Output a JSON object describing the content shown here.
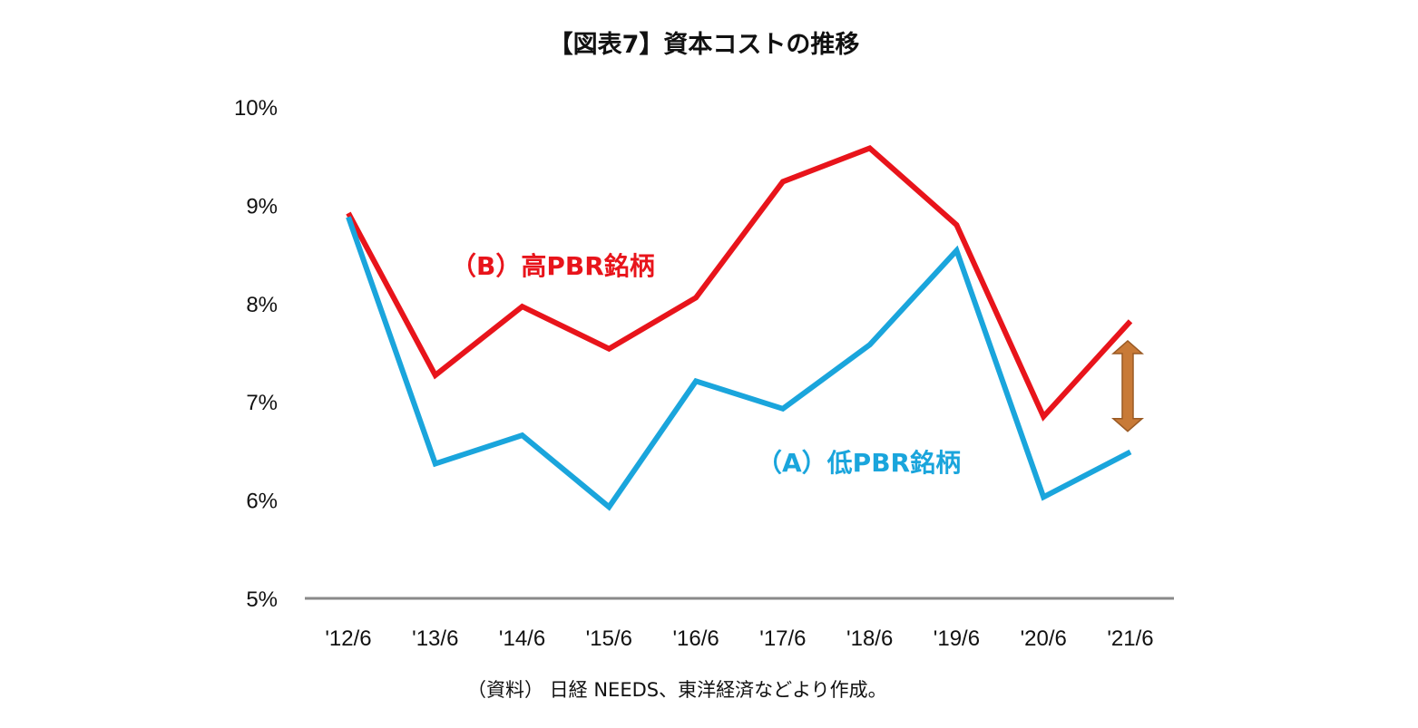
{
  "chart_data": {
    "type": "line",
    "title": "【図表7】資本コストの推移",
    "source": "（資料） 日経 NEEDS、東洋経済などより作成。",
    "categories": [
      "'12/6",
      "'13/6",
      "'14/6",
      "'15/6",
      "'16/6",
      "'17/6",
      "'18/6",
      "'19/6",
      "'20/6",
      "'21/6"
    ],
    "yaxis": {
      "min": 5,
      "max": 10,
      "ticks": [
        5,
        6,
        7,
        8,
        9,
        10
      ],
      "tick_labels": [
        "5%",
        "6%",
        "7%",
        "8%",
        "9%",
        "10%"
      ]
    },
    "grid": false,
    "series": [
      {
        "name": "（B）高PBR銘柄",
        "color": "#e8141b",
        "values": [
          8.92,
          7.27,
          7.97,
          7.54,
          8.06,
          9.24,
          9.58,
          8.8,
          6.85,
          7.82
        ]
      },
      {
        "name": "（A）低PBR銘柄",
        "color": "#1aa5dc",
        "values": [
          8.88,
          6.37,
          6.66,
          5.93,
          7.21,
          6.93,
          7.58,
          8.54,
          6.03,
          6.49
        ]
      }
    ],
    "annotations": [
      {
        "type": "double-arrow",
        "color": "#c87a37",
        "category": "'21/6",
        "from": 6.7,
        "to": 7.62
      }
    ]
  }
}
